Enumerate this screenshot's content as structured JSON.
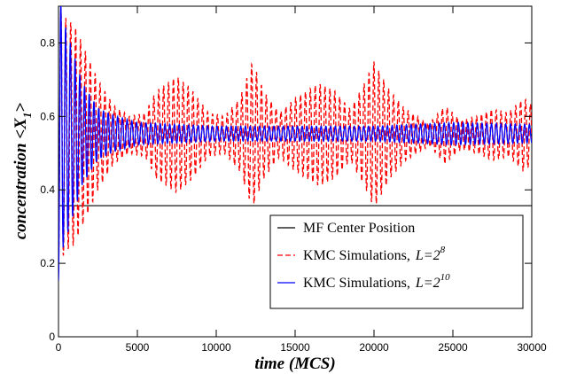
{
  "chart_data": {
    "type": "line",
    "xlabel": "time (MCS)",
    "ylabel_main": "concentration <X",
    "ylabel_sub": "1",
    "ylabel_close": ">",
    "xlim": [
      0,
      30000
    ],
    "ylim": [
      0,
      0.9
    ],
    "x_ticks": [
      0,
      5000,
      10000,
      15000,
      20000,
      25000,
      30000
    ],
    "x_tick_labels": [
      "0",
      "5000",
      "10000",
      "15000",
      "20000",
      "25000",
      "30000"
    ],
    "y_ticks": [
      0,
      0.2,
      0.4,
      0.6,
      0.8
    ],
    "y_tick_labels": [
      "0",
      "0.2",
      "0.4",
      "0.6",
      "0.8"
    ],
    "grid": false,
    "legend_position": "bottom-right",
    "colors": {
      "mf": "#000000",
      "l8": "#ff0000",
      "l10": "#0000ff"
    },
    "series": [
      {
        "key": "mf",
        "legend_text": "MF Center Position",
        "legend_var": "",
        "legend_sup": "",
        "style": "solid",
        "kind": "constant",
        "value": 0.357
      },
      {
        "key": "l8",
        "legend_text": "KMC Simulations,",
        "legend_var": "L=2",
        "legend_sup": "8",
        "style": "dashed",
        "kind": "oscillation",
        "mean": 0.55,
        "period_mcs": 310,
        "envelope": [
          [
            0,
            0.37
          ],
          [
            400,
            0.32
          ],
          [
            1000,
            0.3
          ],
          [
            1500,
            0.25
          ],
          [
            2500,
            0.15
          ],
          [
            3500,
            0.08
          ],
          [
            4500,
            0.05
          ],
          [
            5500,
            0.06
          ],
          [
            6200,
            0.12
          ],
          [
            7500,
            0.16
          ],
          [
            8500,
            0.12
          ],
          [
            9500,
            0.06
          ],
          [
            10500,
            0.05
          ],
          [
            11500,
            0.1
          ],
          [
            12300,
            0.2
          ],
          [
            13000,
            0.12
          ],
          [
            14000,
            0.06
          ],
          [
            15000,
            0.1
          ],
          [
            16500,
            0.14
          ],
          [
            17500,
            0.12
          ],
          [
            18500,
            0.07
          ],
          [
            19500,
            0.15
          ],
          [
            20000,
            0.2
          ],
          [
            21000,
            0.12
          ],
          [
            22000,
            0.07
          ],
          [
            23500,
            0.03
          ],
          [
            24500,
            0.08
          ],
          [
            25500,
            0.04
          ],
          [
            26500,
            0.05
          ],
          [
            27500,
            0.07
          ],
          [
            28500,
            0.06
          ],
          [
            29500,
            0.1
          ],
          [
            30000,
            0.08
          ]
        ]
      },
      {
        "key": "l10",
        "legend_text": "KMC Simulations,",
        "legend_var": "L=2",
        "legend_sup": "10",
        "style": "solid",
        "kind": "oscillation",
        "mean": 0.553,
        "period_mcs": 300,
        "envelope": [
          [
            0,
            0.4
          ],
          [
            300,
            0.31
          ],
          [
            800,
            0.24
          ],
          [
            1500,
            0.14
          ],
          [
            2500,
            0.07
          ],
          [
            3500,
            0.05
          ],
          [
            5000,
            0.03
          ],
          [
            10000,
            0.02
          ],
          [
            15000,
            0.02
          ],
          [
            20000,
            0.02
          ],
          [
            25000,
            0.03
          ],
          [
            30000,
            0.025
          ]
        ]
      }
    ]
  }
}
